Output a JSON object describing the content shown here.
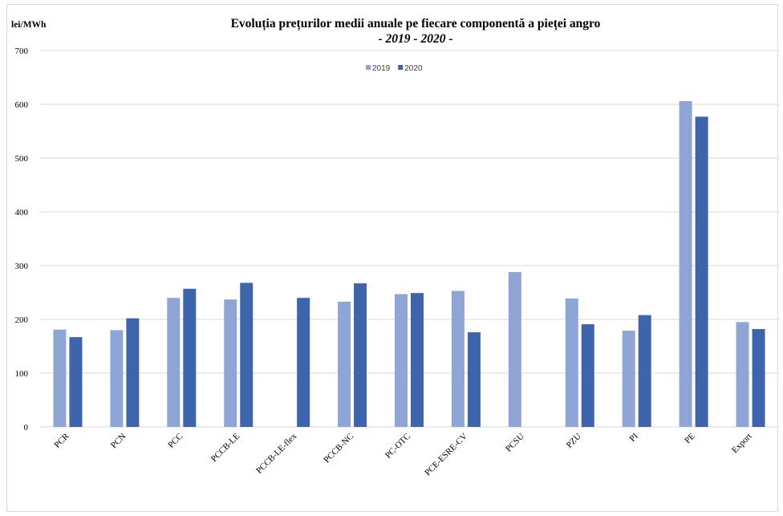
{
  "chart_data": {
    "type": "bar",
    "title": "Evoluția prețurilor medii anuale pe fiecare componentă a pieței angro",
    "subtitle": "- 2019 - 2020 -",
    "ylabel": "lei/MWh",
    "ylim": [
      0,
      700
    ],
    "yticks": [
      0,
      100,
      200,
      300,
      400,
      500,
      600,
      700
    ],
    "grid": true,
    "legend_position": "top-center",
    "categories": [
      "PCR",
      "PCN",
      "PCC",
      "PCCB-LE",
      "PCCB-LE-flex",
      "PCCB-NC",
      "PC-OTC",
      "PCE-ESRE-CV",
      "PCSU",
      "PZU",
      "PI",
      "PE",
      "Export"
    ],
    "series": [
      {
        "name": "2019",
        "color": "#8FA5D6",
        "values": [
          181,
          180,
          240,
          237,
          null,
          233,
          247,
          253,
          288,
          239,
          179,
          606,
          195
        ]
      },
      {
        "name": "2020",
        "color": "#3E64AC",
        "values": [
          167,
          202,
          257,
          268,
          240,
          267,
          249,
          176,
          null,
          191,
          208,
          577,
          182
        ]
      }
    ]
  }
}
